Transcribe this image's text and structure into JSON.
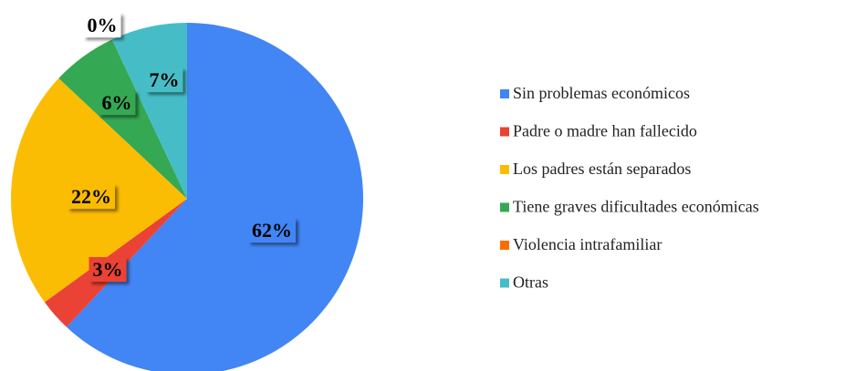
{
  "chart_data": {
    "type": "pie",
    "categories": [
      "Sin problemas económicos",
      "Padre o madre han fallecido",
      "Los padres están separados",
      "Tiene graves dificultades económicas",
      "Violencia intrafamiliar",
      "Otras"
    ],
    "values": [
      62,
      3,
      22,
      6,
      0,
      7
    ],
    "value_labels": [
      "62%",
      "3%",
      "22%",
      "6%",
      "0%",
      "7%"
    ],
    "colors": [
      "#4285f4",
      "#ea4335",
      "#fbbc04",
      "#34a853",
      "#ff6d01",
      "#46bdc6"
    ],
    "legend": "right"
  }
}
